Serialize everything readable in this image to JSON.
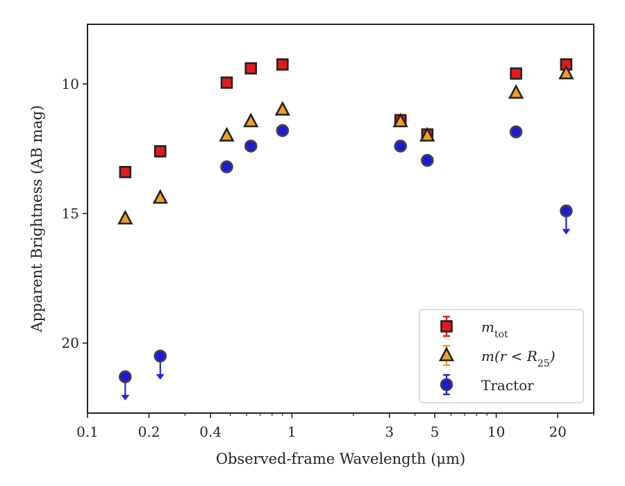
{
  "chart_data": {
    "type": "scatter",
    "xlabel": "Observed-frame Wavelength (μm)",
    "ylabel": "Apparent Brightness (AB mag)",
    "xscale": "log",
    "xlim": [
      0.1,
      30
    ],
    "ylim": [
      22.7,
      7.7
    ],
    "y_inverted": true,
    "xticks": [
      {
        "value": 0.1,
        "label": "0.1"
      },
      {
        "value": 0.2,
        "label": "0.2"
      },
      {
        "value": 0.4,
        "label": "0.4"
      },
      {
        "value": 1,
        "label": "1"
      },
      {
        "value": 3,
        "label": "3"
      },
      {
        "value": 5,
        "label": "5"
      },
      {
        "value": 10,
        "label": "10"
      },
      {
        "value": 20,
        "label": "20"
      }
    ],
    "yticks": [
      {
        "value": 10,
        "label": "10"
      },
      {
        "value": 15,
        "label": "15"
      },
      {
        "value": 20,
        "label": "20"
      }
    ],
    "grid": false,
    "legend_position": "lower-right",
    "series": [
      {
        "key": "mtot",
        "marker": "square",
        "color": "#e31a1c",
        "edge": "#222222",
        "points": [
          {
            "x": 0.153,
            "y": 13.4
          },
          {
            "x": 0.227,
            "y": 12.6
          },
          {
            "x": 0.48,
            "y": 9.95
          },
          {
            "x": 0.63,
            "y": 9.4
          },
          {
            "x": 0.9,
            "y": 9.25
          },
          {
            "x": 3.4,
            "y": 11.4
          },
          {
            "x": 4.6,
            "y": 11.95
          },
          {
            "x": 12.5,
            "y": 9.6
          },
          {
            "x": 22.0,
            "y": 9.25
          }
        ]
      },
      {
        "key": "mr25",
        "marker": "triangle",
        "color": "#f2a01a",
        "edge": "#222222",
        "points": [
          {
            "x": 0.153,
            "y": 15.2
          },
          {
            "x": 0.227,
            "y": 14.4
          },
          {
            "x": 0.48,
            "y": 12.0
          },
          {
            "x": 0.63,
            "y": 11.45
          },
          {
            "x": 0.9,
            "y": 11.0
          },
          {
            "x": 3.4,
            "y": 11.45
          },
          {
            "x": 4.6,
            "y": 12.0
          },
          {
            "x": 12.5,
            "y": 10.35
          },
          {
            "x": 22.0,
            "y": 9.6
          }
        ]
      },
      {
        "key": "tractor",
        "marker": "circle",
        "color": "#1c1cd6",
        "edge": "#444444",
        "points": [
          {
            "x": 0.153,
            "y": 21.3,
            "upper_limit": true
          },
          {
            "x": 0.227,
            "y": 20.5,
            "upper_limit": true
          },
          {
            "x": 0.48,
            "y": 13.2
          },
          {
            "x": 0.63,
            "y": 12.4
          },
          {
            "x": 0.9,
            "y": 11.8
          },
          {
            "x": 3.4,
            "y": 12.4
          },
          {
            "x": 4.6,
            "y": 12.95
          },
          {
            "x": 12.5,
            "y": 11.85
          },
          {
            "x": 22.0,
            "y": 14.9,
            "upper_limit": true
          }
        ]
      }
    ],
    "legend": [
      {
        "series": "mtot",
        "text": "m",
        "sub": "tot",
        "italic": true
      },
      {
        "series": "mr25",
        "text": "m(r < R",
        "sub": "25",
        "suffix": ")",
        "italic": true
      },
      {
        "series": "tractor",
        "text": "Tractor",
        "italic": false
      }
    ],
    "colors": {
      "upper_limit_arrow": "#2222e0",
      "errorbar_mtot": "#e31a1c",
      "errorbar_mr25": "#f2a01a",
      "errorbar_tractor": "#2222e0"
    }
  }
}
